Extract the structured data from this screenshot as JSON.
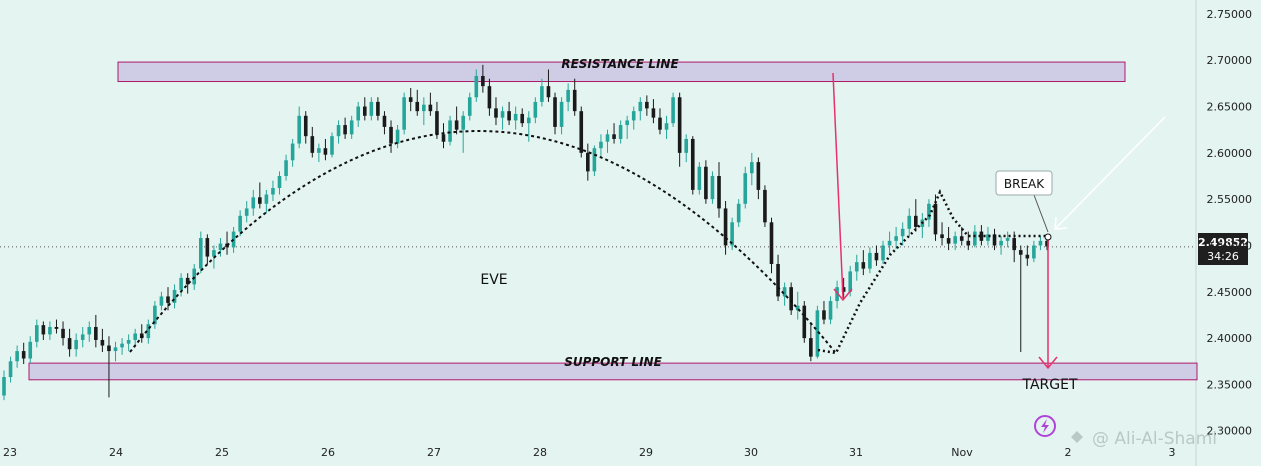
{
  "chart_data": {
    "type": "candlestick",
    "y_ticks": [
      "2.75000",
      "2.70000",
      "2.65000",
      "2.60000",
      "2.55000",
      "2.50000",
      "2.45000",
      "2.40000",
      "2.35000",
      "2.30000"
    ],
    "ylim": [
      2.29,
      2.765
    ],
    "x_ticks": [
      "23",
      "24",
      "25",
      "26",
      "27",
      "28",
      "29",
      "30",
      "31",
      "Nov",
      "2",
      "3"
    ],
    "last_price": "2.49852",
    "countdown": "34:26",
    "resistance_label": "RESISTANCE LINE",
    "support_label": "SUPPORT LINE",
    "resistance_zone": [
      2.677,
      2.698
    ],
    "support_zone": [
      2.355,
      2.373
    ],
    "annotations": {
      "eve": "EVE",
      "break": "BREAK",
      "target": "TARGET"
    },
    "watermark": "@ Ali-Al-Shami",
    "colors": {
      "bull": "#26a69a",
      "bear": "#1a1a1a",
      "zone_fill": "#cfcde6",
      "zone_border": "#b0176b",
      "arrow": "#e8306b",
      "last_price_badge": "#1f1f1f"
    },
    "candles": [
      [
        2.338,
        2.365,
        2.333,
        2.358
      ],
      [
        2.358,
        2.38,
        2.352,
        2.375
      ],
      [
        2.375,
        2.392,
        2.368,
        2.386
      ],
      [
        2.386,
        2.395,
        2.372,
        2.378
      ],
      [
        2.378,
        2.402,
        2.373,
        2.396
      ],
      [
        2.396,
        2.42,
        2.39,
        2.414
      ],
      [
        2.414,
        2.418,
        2.398,
        2.404
      ],
      [
        2.404,
        2.418,
        2.398,
        2.412
      ],
      [
        2.412,
        2.42,
        2.405,
        2.41
      ],
      [
        2.41,
        2.418,
        2.392,
        2.4
      ],
      [
        2.4,
        2.41,
        2.38,
        2.388
      ],
      [
        2.388,
        2.405,
        2.38,
        2.398
      ],
      [
        2.398,
        2.412,
        2.39,
        2.404
      ],
      [
        2.404,
        2.418,
        2.396,
        2.412
      ],
      [
        2.412,
        2.425,
        2.39,
        2.398
      ],
      [
        2.398,
        2.41,
        2.385,
        2.392
      ],
      [
        2.392,
        2.402,
        2.336,
        2.386
      ],
      [
        2.386,
        2.396,
        2.375,
        2.39
      ],
      [
        2.39,
        2.4,
        2.382,
        2.394
      ],
      [
        2.394,
        2.404,
        2.386,
        2.398
      ],
      [
        2.398,
        2.41,
        2.39,
        2.405
      ],
      [
        2.405,
        2.415,
        2.395,
        2.4
      ],
      [
        2.4,
        2.42,
        2.394,
        2.415
      ],
      [
        2.415,
        2.44,
        2.41,
        2.435
      ],
      [
        2.435,
        2.45,
        2.43,
        2.445
      ],
      [
        2.445,
        2.455,
        2.43,
        2.438
      ],
      [
        2.438,
        2.458,
        2.432,
        2.452
      ],
      [
        2.452,
        2.47,
        2.445,
        2.465
      ],
      [
        2.465,
        2.47,
        2.448,
        2.458
      ],
      [
        2.458,
        2.48,
        2.452,
        2.475
      ],
      [
        2.475,
        2.515,
        2.47,
        2.508
      ],
      [
        2.508,
        2.512,
        2.48,
        2.488
      ],
      [
        2.488,
        2.5,
        2.475,
        2.495
      ],
      [
        2.495,
        2.508,
        2.488,
        2.502
      ],
      [
        2.502,
        2.515,
        2.49,
        2.498
      ],
      [
        2.498,
        2.52,
        2.492,
        2.515
      ],
      [
        2.515,
        2.538,
        2.51,
        2.532
      ],
      [
        2.532,
        2.548,
        2.525,
        2.54
      ],
      [
        2.54,
        2.56,
        2.532,
        2.552
      ],
      [
        2.552,
        2.568,
        2.54,
        2.545
      ],
      [
        2.545,
        2.56,
        2.535,
        2.555
      ],
      [
        2.555,
        2.57,
        2.548,
        2.562
      ],
      [
        2.562,
        2.58,
        2.555,
        2.575
      ],
      [
        2.575,
        2.598,
        2.57,
        2.592
      ],
      [
        2.592,
        2.615,
        2.585,
        2.61
      ],
      [
        2.61,
        2.65,
        2.605,
        2.64
      ],
      [
        2.64,
        2.645,
        2.61,
        2.618
      ],
      [
        2.618,
        2.628,
        2.595,
        2.6
      ],
      [
        2.6,
        2.61,
        2.59,
        2.605
      ],
      [
        2.605,
        2.615,
        2.592,
        2.598
      ],
      [
        2.598,
        2.622,
        2.595,
        2.618
      ],
      [
        2.618,
        2.635,
        2.61,
        2.63
      ],
      [
        2.63,
        2.638,
        2.615,
        2.62
      ],
      [
        2.62,
        2.64,
        2.615,
        2.635
      ],
      [
        2.635,
        2.655,
        2.628,
        2.65
      ],
      [
        2.65,
        2.66,
        2.635,
        2.64
      ],
      [
        2.64,
        2.66,
        2.635,
        2.655
      ],
      [
        2.655,
        2.66,
        2.635,
        2.64
      ],
      [
        2.64,
        2.645,
        2.62,
        2.628
      ],
      [
        2.628,
        2.635,
        2.6,
        2.61
      ],
      [
        2.61,
        2.63,
        2.605,
        2.625
      ],
      [
        2.625,
        2.665,
        2.62,
        2.66
      ],
      [
        2.66,
        2.67,
        2.645,
        2.655
      ],
      [
        2.655,
        2.668,
        2.64,
        2.645
      ],
      [
        2.645,
        2.66,
        2.63,
        2.652
      ],
      [
        2.652,
        2.665,
        2.64,
        2.645
      ],
      [
        2.645,
        2.655,
        2.615,
        2.62
      ],
      [
        2.62,
        2.632,
        2.605,
        2.612
      ],
      [
        2.612,
        2.64,
        2.608,
        2.635
      ],
      [
        2.635,
        2.65,
        2.62,
        2.625
      ],
      [
        2.625,
        2.645,
        2.6,
        2.64
      ],
      [
        2.64,
        2.665,
        2.635,
        2.66
      ],
      [
        2.66,
        2.69,
        2.655,
        2.683
      ],
      [
        2.683,
        2.695,
        2.665,
        2.672
      ],
      [
        2.672,
        2.68,
        2.64,
        2.648
      ],
      [
        2.648,
        2.66,
        2.63,
        2.638
      ],
      [
        2.638,
        2.65,
        2.625,
        2.645
      ],
      [
        2.645,
        2.655,
        2.63,
        2.635
      ],
      [
        2.635,
        2.65,
        2.625,
        2.642
      ],
      [
        2.642,
        2.648,
        2.628,
        2.632
      ],
      [
        2.632,
        2.645,
        2.612,
        2.638
      ],
      [
        2.638,
        2.66,
        2.632,
        2.655
      ],
      [
        2.655,
        2.68,
        2.65,
        2.672
      ],
      [
        2.672,
        2.69,
        2.655,
        2.66
      ],
      [
        2.66,
        2.665,
        2.62,
        2.628
      ],
      [
        2.628,
        2.66,
        2.62,
        2.655
      ],
      [
        2.655,
        2.675,
        2.645,
        2.668
      ],
      [
        2.668,
        2.68,
        2.64,
        2.645
      ],
      [
        2.645,
        2.65,
        2.595,
        2.6
      ],
      [
        2.6,
        2.61,
        2.57,
        2.58
      ],
      [
        2.58,
        2.608,
        2.575,
        2.605
      ],
      [
        2.605,
        2.62,
        2.595,
        2.612
      ],
      [
        2.612,
        2.625,
        2.6,
        2.62
      ],
      [
        2.62,
        2.632,
        2.61,
        2.615
      ],
      [
        2.615,
        2.635,
        2.61,
        2.63
      ],
      [
        2.63,
        2.64,
        2.615,
        2.635
      ],
      [
        2.635,
        2.65,
        2.625,
        2.645
      ],
      [
        2.645,
        2.66,
        2.635,
        2.655
      ],
      [
        2.655,
        2.662,
        2.64,
        2.648
      ],
      [
        2.648,
        2.658,
        2.632,
        2.638
      ],
      [
        2.638,
        2.648,
        2.62,
        2.625
      ],
      [
        2.625,
        2.64,
        2.615,
        2.632
      ],
      [
        2.632,
        2.665,
        2.628,
        2.66
      ],
      [
        2.66,
        2.665,
        2.585,
        2.6
      ],
      [
        2.6,
        2.62,
        2.59,
        2.615
      ],
      [
        2.615,
        2.618,
        2.555,
        2.56
      ],
      [
        2.56,
        2.59,
        2.555,
        2.585
      ],
      [
        2.585,
        2.592,
        2.545,
        2.55
      ],
      [
        2.55,
        2.58,
        2.545,
        2.575
      ],
      [
        2.575,
        2.59,
        2.53,
        2.54
      ],
      [
        2.54,
        2.548,
        2.49,
        2.5
      ],
      [
        2.5,
        2.53,
        2.495,
        2.525
      ],
      [
        2.525,
        2.55,
        2.52,
        2.545
      ],
      [
        2.545,
        2.585,
        2.54,
        2.578
      ],
      [
        2.578,
        2.6,
        2.565,
        2.59
      ],
      [
        2.59,
        2.595,
        2.55,
        2.56
      ],
      [
        2.56,
        2.565,
        2.52,
        2.525
      ],
      [
        2.525,
        2.53,
        2.47,
        2.48
      ],
      [
        2.48,
        2.49,
        2.44,
        2.445
      ],
      [
        2.445,
        2.46,
        2.435,
        2.455
      ],
      [
        2.455,
        2.46,
        2.425,
        2.43
      ],
      [
        2.43,
        2.45,
        2.42,
        2.435
      ],
      [
        2.435,
        2.44,
        2.395,
        2.4
      ],
      [
        2.4,
        2.415,
        2.375,
        2.38
      ],
      [
        2.38,
        2.435,
        2.378,
        2.43
      ],
      [
        2.43,
        2.44,
        2.415,
        2.42
      ],
      [
        2.42,
        2.445,
        2.415,
        2.44
      ],
      [
        2.44,
        2.462,
        2.432,
        2.455
      ],
      [
        2.455,
        2.465,
        2.442,
        2.45
      ],
      [
        2.45,
        2.478,
        2.445,
        2.472
      ],
      [
        2.472,
        2.49,
        2.462,
        2.482
      ],
      [
        2.482,
        2.495,
        2.468,
        2.475
      ],
      [
        2.475,
        2.498,
        2.47,
        2.492
      ],
      [
        2.492,
        2.5,
        2.478,
        2.484
      ],
      [
        2.484,
        2.505,
        2.48,
        2.5
      ],
      [
        2.5,
        2.515,
        2.49,
        2.505
      ],
      [
        2.505,
        2.52,
        2.496,
        2.51
      ],
      [
        2.51,
        2.525,
        2.5,
        2.518
      ],
      [
        2.518,
        2.54,
        2.51,
        2.532
      ],
      [
        2.532,
        2.55,
        2.515,
        2.52
      ],
      [
        2.52,
        2.535,
        2.508,
        2.528
      ],
      [
        2.528,
        2.55,
        2.52,
        2.545
      ],
      [
        2.545,
        2.555,
        2.505,
        2.512
      ],
      [
        2.512,
        2.525,
        2.5,
        2.508
      ],
      [
        2.508,
        2.52,
        2.495,
        2.502
      ],
      [
        2.502,
        2.515,
        2.495,
        2.51
      ],
      [
        2.51,
        2.52,
        2.5,
        2.505
      ],
      [
        2.505,
        2.515,
        2.495,
        2.5
      ],
      [
        2.5,
        2.522,
        2.498,
        2.515
      ],
      [
        2.515,
        2.522,
        2.5,
        2.505
      ],
      [
        2.505,
        2.52,
        2.5,
        2.512
      ],
      [
        2.512,
        2.518,
        2.495,
        2.5
      ],
      [
        2.5,
        2.51,
        2.49,
        2.505
      ],
      [
        2.505,
        2.515,
        2.498,
        2.508
      ],
      [
        2.508,
        2.515,
        2.482,
        2.495
      ],
      [
        2.495,
        2.5,
        2.385,
        2.49
      ],
      [
        2.49,
        2.5,
        2.478,
        2.486
      ],
      [
        2.486,
        2.505,
        2.482,
        2.5
      ],
      [
        2.5,
        2.51,
        2.495,
        2.505
      ],
      [
        2.505,
        2.508,
        2.495,
        2.499
      ]
    ]
  }
}
